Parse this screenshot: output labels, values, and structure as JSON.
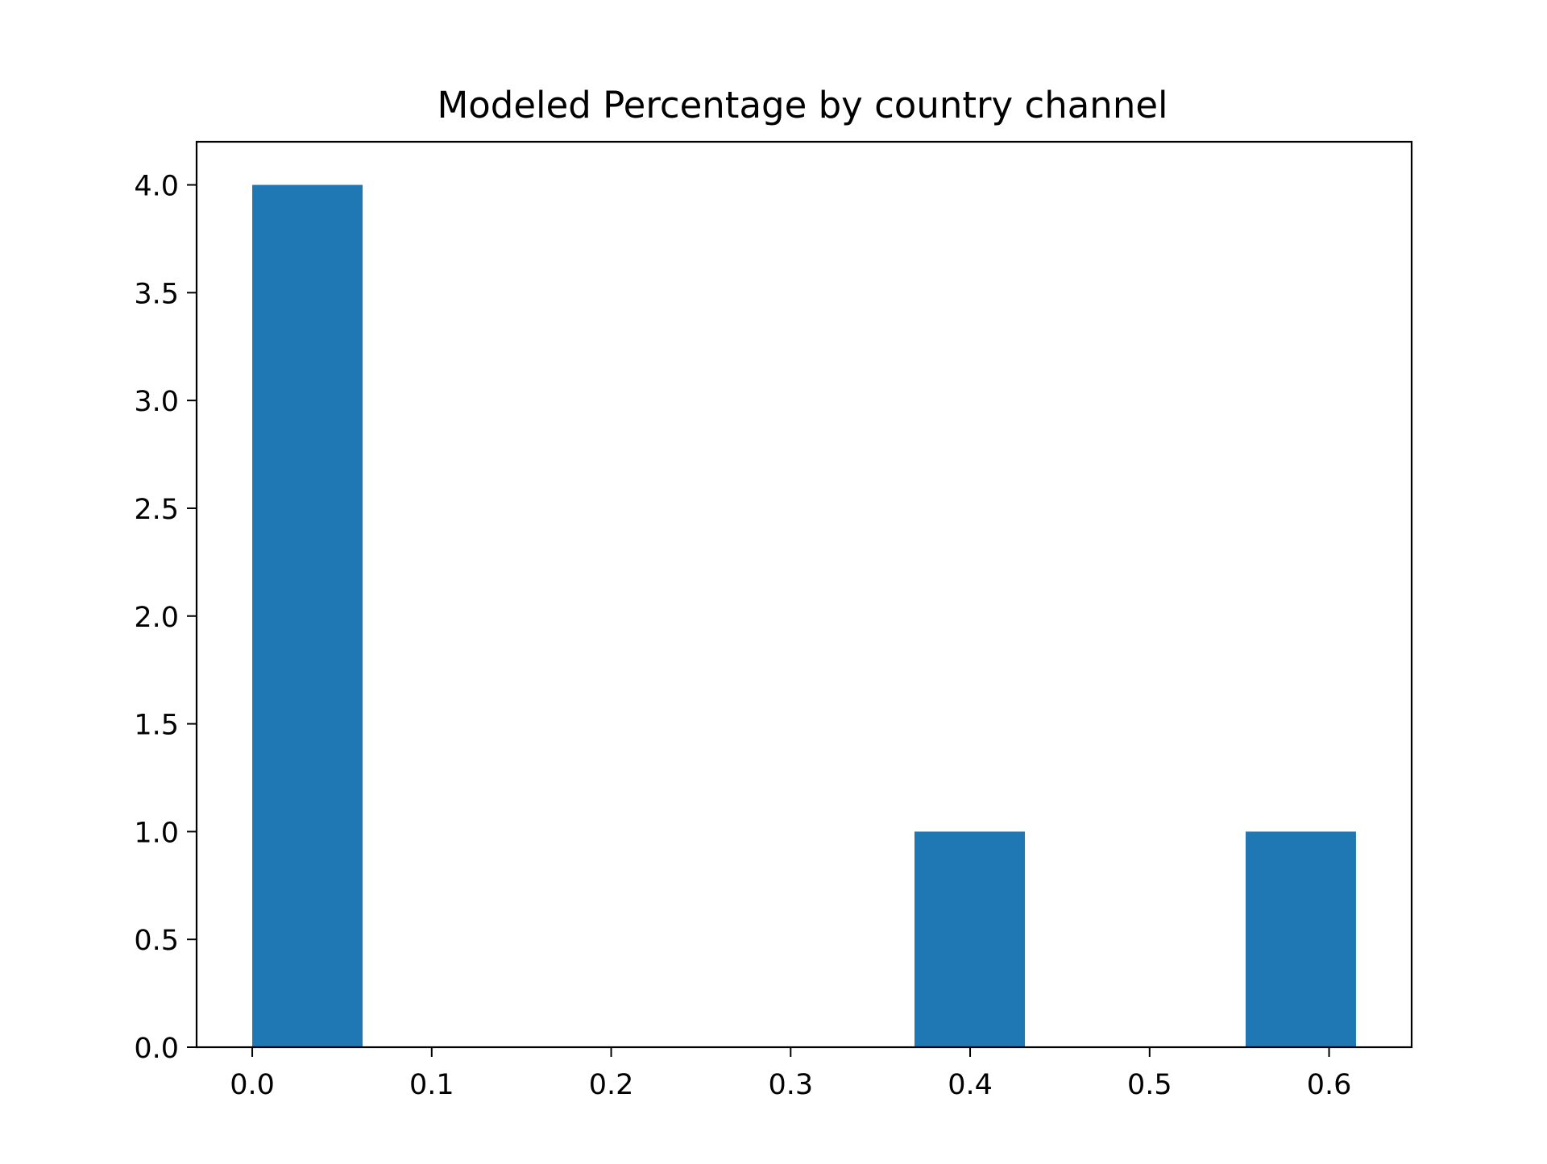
{
  "chart_data": {
    "type": "bar",
    "title": "Modeled Percentage by country channel",
    "xlabel": "",
    "ylabel": "",
    "xlim": [
      -0.031,
      0.646
    ],
    "ylim": [
      0,
      4.2
    ],
    "x_ticks": [
      {
        "value": 0.0,
        "label": "0.0"
      },
      {
        "value": 0.1,
        "label": "0.1"
      },
      {
        "value": 0.2,
        "label": "0.2"
      },
      {
        "value": 0.3,
        "label": "0.3"
      },
      {
        "value": 0.4,
        "label": "0.4"
      },
      {
        "value": 0.5,
        "label": "0.5"
      },
      {
        "value": 0.6,
        "label": "0.6"
      }
    ],
    "y_ticks": [
      {
        "value": 0.0,
        "label": "0.0"
      },
      {
        "value": 0.5,
        "label": "0.5"
      },
      {
        "value": 1.0,
        "label": "1.0"
      },
      {
        "value": 1.5,
        "label": "1.5"
      },
      {
        "value": 2.0,
        "label": "2.0"
      },
      {
        "value": 2.5,
        "label": "2.5"
      },
      {
        "value": 3.0,
        "label": "3.0"
      },
      {
        "value": 3.5,
        "label": "3.5"
      },
      {
        "value": 4.0,
        "label": "4.0"
      }
    ],
    "bars": [
      {
        "x0": 0.0,
        "x1": 0.0615,
        "value": 4
      },
      {
        "x0": 0.369,
        "x1": 0.4305,
        "value": 1
      },
      {
        "x0": 0.5535,
        "x1": 0.615,
        "value": 1
      }
    ],
    "bar_color": "#1f77b4",
    "grid": false,
    "legend": "none"
  }
}
